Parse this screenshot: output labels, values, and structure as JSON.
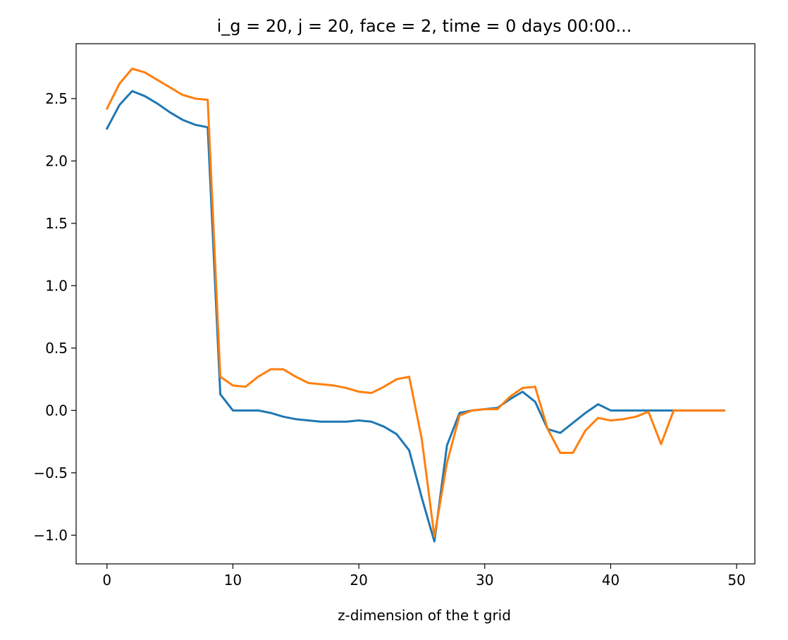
{
  "chart_data": {
    "type": "line",
    "title": "i_g = 20, j = 20, face = 2, time = 0 days 00:00...",
    "xlabel": "z-dimension of the t grid",
    "ylabel": "",
    "xlim": [
      -2.45,
      51.45
    ],
    "ylim": [
      -1.23,
      2.94
    ],
    "x_ticks": [
      0,
      10,
      20,
      30,
      40,
      50
    ],
    "x_tick_labels": [
      "0",
      "10",
      "20",
      "30",
      "40",
      "50"
    ],
    "y_ticks": [
      -1.0,
      -0.5,
      0.0,
      0.5,
      1.0,
      1.5,
      2.0,
      2.5
    ],
    "y_tick_labels": [
      "−1.0",
      "−0.5",
      "0.0",
      "0.5",
      "1.0",
      "1.5",
      "2.0",
      "2.5"
    ],
    "grid": false,
    "x": [
      0,
      1,
      2,
      3,
      4,
      5,
      6,
      7,
      8,
      9,
      10,
      11,
      12,
      13,
      14,
      15,
      16,
      17,
      18,
      19,
      20,
      21,
      22,
      23,
      24,
      25,
      26,
      27,
      28,
      29,
      30,
      31,
      32,
      33,
      34,
      35,
      36,
      37,
      38,
      39,
      40,
      41,
      42,
      43,
      44,
      45,
      46,
      47,
      48,
      49
    ],
    "series": [
      {
        "color": "#1f77b4",
        "values": [
          2.26,
          2.45,
          2.56,
          2.52,
          2.46,
          2.39,
          2.33,
          2.29,
          2.27,
          0.13,
          0.0,
          0.0,
          0.0,
          -0.02,
          -0.05,
          -0.07,
          -0.08,
          -0.09,
          -0.09,
          -0.09,
          -0.08,
          -0.09,
          -0.13,
          -0.19,
          -0.32,
          -0.7,
          -1.05,
          -0.28,
          -0.02,
          0.0,
          0.01,
          0.02,
          0.09,
          0.15,
          0.07,
          -0.15,
          -0.18,
          -0.1,
          -0.02,
          0.05,
          0.0,
          0.0,
          0.0,
          0.0,
          0.0,
          0.0,
          0.0,
          0.0,
          0.0,
          0.0
        ]
      },
      {
        "color": "#ff7f0e",
        "values": [
          2.42,
          2.62,
          2.74,
          2.71,
          2.65,
          2.59,
          2.53,
          2.5,
          2.49,
          0.27,
          0.2,
          0.19,
          0.27,
          0.33,
          0.33,
          0.27,
          0.22,
          0.21,
          0.2,
          0.18,
          0.15,
          0.14,
          0.19,
          0.25,
          0.27,
          -0.23,
          -1.01,
          -0.42,
          -0.04,
          0.0,
          0.01,
          0.01,
          0.11,
          0.18,
          0.19,
          -0.15,
          -0.34,
          -0.34,
          -0.16,
          -0.06,
          -0.08,
          -0.07,
          -0.05,
          -0.01,
          -0.27,
          0.0,
          0.0,
          0.0,
          0.0,
          0.0
        ]
      }
    ]
  }
}
